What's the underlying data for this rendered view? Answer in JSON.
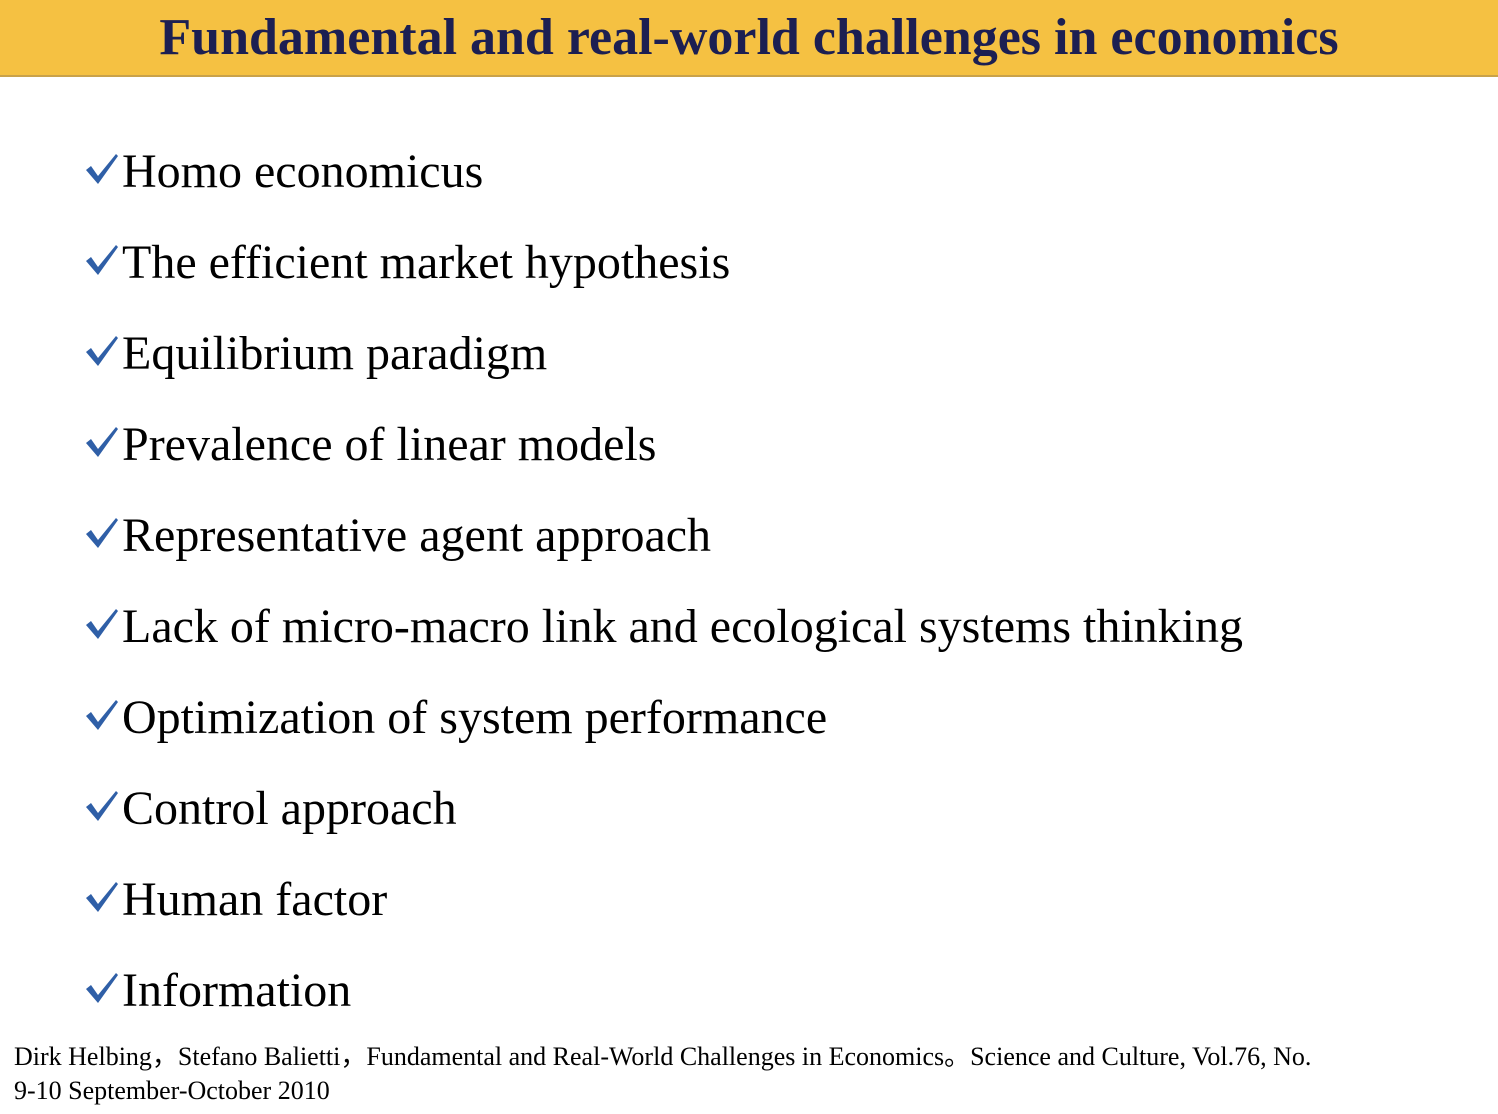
{
  "slide": {
    "title": "Fundamental and real-world challenges in economics",
    "colors": {
      "title_bar": "#f5c142",
      "title_text": "#1c1f52",
      "check": "#2f5fa7"
    },
    "bullet_icon": "checkmark-icon",
    "items": [
      "Homo economicus",
      "The efficient market hypothesis",
      "Equilibrium paradigm",
      "Prevalence of linear models",
      "Representative agent approach",
      "Lack of micro-macro link and ecological systems thinking",
      "Optimization of system performance",
      "Control approach",
      "Human factor",
      "Information"
    ],
    "citation": {
      "line1": "Dirk Helbing，Stefano Balietti，Fundamental and Real-World Challenges in Economics。Science and Culture, Vol.76, No.",
      "line2": "9-10 September-October 2010"
    }
  }
}
